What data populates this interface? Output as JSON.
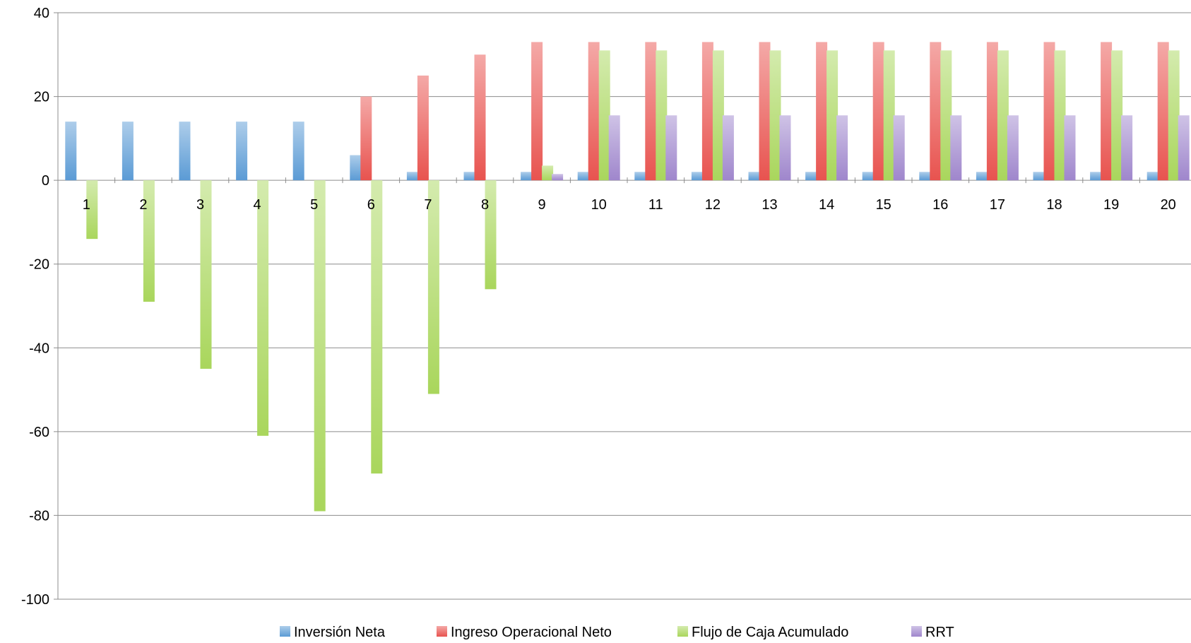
{
  "chart_data": {
    "type": "bar",
    "title": "",
    "xlabel": "",
    "ylabel": "",
    "categories": [
      "1",
      "2",
      "3",
      "4",
      "5",
      "6",
      "7",
      "8",
      "9",
      "10",
      "11",
      "12",
      "13",
      "14",
      "15",
      "16",
      "17",
      "18",
      "19",
      "20"
    ],
    "ylim": [
      -100,
      40
    ],
    "yticks": [
      40,
      20,
      0,
      -20,
      -40,
      -60,
      -80,
      -100
    ],
    "grid": true,
    "legend_position": "bottom",
    "series": [
      {
        "name": "Inversión Neta",
        "color": "#5B9BD5",
        "values": [
          14,
          14,
          14,
          14,
          14,
          6,
          2,
          2,
          2,
          2,
          2,
          2,
          2,
          2,
          2,
          2,
          2,
          2,
          2,
          2
        ]
      },
      {
        "name": "Ingreso Operacional Neto",
        "color": "#E8534F",
        "values": [
          0,
          0,
          0,
          0,
          0,
          20,
          25,
          30,
          33,
          33,
          33,
          33,
          33,
          33,
          33,
          33,
          33,
          33,
          33,
          33
        ]
      },
      {
        "name": "Flujo de Caja Acumulado",
        "color": "#A9D65C",
        "values": [
          -14,
          -29,
          -45,
          -61,
          -79,
          -70,
          -51,
          -26,
          3.5,
          31,
          31,
          31,
          31,
          31,
          31,
          31,
          31,
          31,
          31,
          31
        ]
      },
      {
        "name": "RRT",
        "color": "#9F86CC",
        "values": [
          0,
          0,
          0,
          0,
          0,
          0,
          0,
          0,
          1.5,
          15.5,
          15.5,
          15.5,
          15.5,
          15.5,
          15.5,
          15.5,
          15.5,
          15.5,
          15.5,
          15.5
        ]
      }
    ]
  }
}
